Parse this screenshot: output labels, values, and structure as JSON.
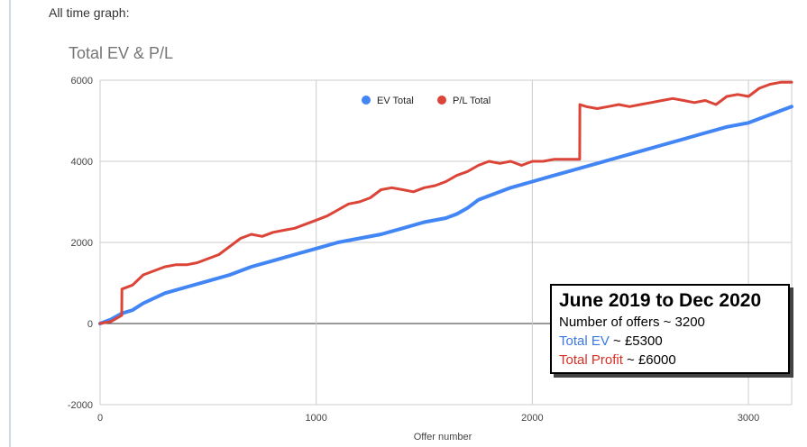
{
  "intro_text": "All time graph:",
  "info": {
    "title": "June 2019 to Dec 2020",
    "offers": "Number of offers ~ 3200",
    "ev_label": "Total EV",
    "ev_value": " ~ £5300",
    "profit_label": "Total Profit",
    "profit_value": " ~ £6000"
  },
  "colors": {
    "ev": "#4285f4",
    "pl": "#db4437",
    "grid": "#cccccc",
    "zero": "#333333"
  },
  "chart_data": {
    "type": "line",
    "title": "Total EV & P/L",
    "xlabel": "Offer number",
    "ylabel": "",
    "xlim": [
      0,
      3200
    ],
    "ylim": [
      -2000,
      6000
    ],
    "xticks": [
      0,
      1000,
      2000,
      3000
    ],
    "yticks": [
      -2000,
      0,
      2000,
      4000,
      6000
    ],
    "xtick_labels": [
      "0",
      "1000",
      "2000",
      "3000"
    ],
    "ytick_labels": [
      "-2000",
      "0",
      "2000",
      "4000",
      "6000"
    ],
    "grid": true,
    "legend_position": "top-center",
    "series": [
      {
        "name": "EV Total",
        "color": "#4285f4",
        "x": [
          0,
          50,
          100,
          150,
          200,
          300,
          400,
          500,
          600,
          700,
          800,
          900,
          1000,
          1100,
          1200,
          1300,
          1400,
          1500,
          1600,
          1650,
          1700,
          1750,
          1800,
          1900,
          2000,
          2100,
          2200,
          2300,
          2400,
          2500,
          2600,
          2700,
          2800,
          2900,
          3000,
          3050,
          3100,
          3150,
          3200
        ],
        "values": [
          0,
          100,
          250,
          330,
          500,
          750,
          900,
          1050,
          1200,
          1400,
          1550,
          1700,
          1850,
          2000,
          2100,
          2200,
          2350,
          2500,
          2600,
          2700,
          2850,
          3050,
          3150,
          3350,
          3500,
          3650,
          3800,
          3950,
          4100,
          4250,
          4400,
          4550,
          4700,
          4850,
          4950,
          5050,
          5150,
          5250,
          5350
        ]
      },
      {
        "name": "P/L Total",
        "color": "#db4437",
        "x": [
          0,
          50,
          100,
          101,
          150,
          200,
          250,
          300,
          350,
          400,
          450,
          500,
          550,
          600,
          650,
          700,
          750,
          800,
          850,
          900,
          950,
          1000,
          1050,
          1100,
          1150,
          1200,
          1250,
          1300,
          1350,
          1400,
          1450,
          1500,
          1550,
          1600,
          1650,
          1700,
          1750,
          1800,
          1850,
          1900,
          1950,
          2000,
          2050,
          2100,
          2150,
          2219,
          2220,
          2250,
          2300,
          2350,
          2400,
          2450,
          2500,
          2550,
          2600,
          2650,
          2700,
          2750,
          2800,
          2850,
          2900,
          2950,
          3000,
          3050,
          3100,
          3150,
          3200
        ],
        "values": [
          0,
          50,
          200,
          850,
          950,
          1200,
          1300,
          1400,
          1450,
          1450,
          1500,
          1600,
          1700,
          1900,
          2100,
          2200,
          2150,
          2250,
          2300,
          2350,
          2450,
          2550,
          2650,
          2800,
          2950,
          3000,
          3100,
          3300,
          3350,
          3300,
          3250,
          3350,
          3400,
          3500,
          3650,
          3750,
          3900,
          4000,
          3950,
          4000,
          3900,
          4000,
          4000,
          4050,
          4050,
          4050,
          5400,
          5350,
          5300,
          5350,
          5400,
          5350,
          5400,
          5450,
          5500,
          5550,
          5500,
          5450,
          5500,
          5400,
          5600,
          5650,
          5600,
          5800,
          5900,
          5950,
          5950
        ]
      }
    ]
  }
}
